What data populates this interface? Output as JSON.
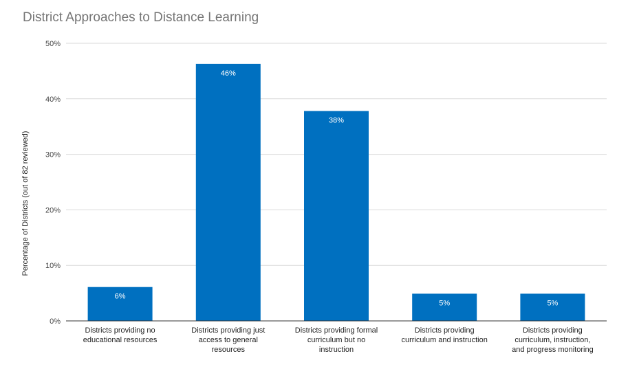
{
  "chart_data": {
    "type": "bar",
    "title": "District Approaches to Distance Learning",
    "xlabel": "",
    "ylabel": "Percentage of Districts (out of 82 reviewed)",
    "categories": [
      [
        "Districts providing no",
        "educational resources"
      ],
      [
        "Districts providing just",
        "access to general",
        "resources"
      ],
      [
        "Districts providing formal",
        "curriculum but no",
        "instruction"
      ],
      [
        "Districts providing",
        "curriculum and instruction"
      ],
      [
        "Districts providing",
        "curriculum, instruction,",
        "and progress monitoring"
      ]
    ],
    "values": [
      6.1,
      46.3,
      37.8,
      4.9,
      4.9
    ],
    "data_labels": [
      "6%",
      "46%",
      "38%",
      "5%",
      "5%"
    ],
    "yticks": [
      "0%",
      "10%",
      "20%",
      "30%",
      "40%",
      "50%"
    ],
    "ylim": [
      0,
      50
    ],
    "grid": true,
    "legend": "none",
    "bar_color": "#0070c0"
  }
}
